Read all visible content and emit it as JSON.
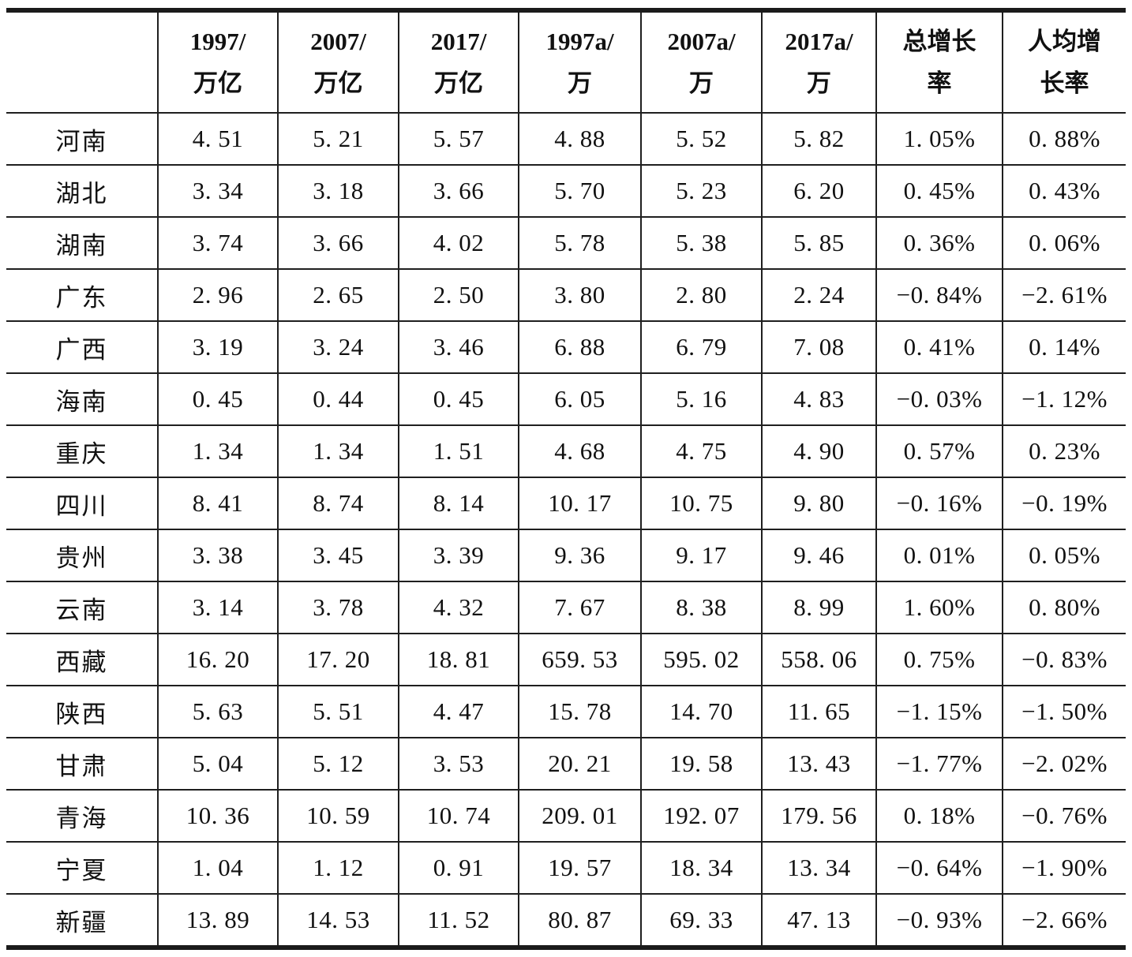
{
  "table": {
    "columns": [
      {
        "line1": "",
        "line2": ""
      },
      {
        "line1": "1997/",
        "line2": "万亿"
      },
      {
        "line1": "2007/",
        "line2": "万亿"
      },
      {
        "line1": "2017/",
        "line2": "万亿"
      },
      {
        "line1": "1997a/",
        "line2": "万"
      },
      {
        "line1": "2007a/",
        "line2": "万"
      },
      {
        "line1": "2017a/",
        "line2": "万"
      },
      {
        "line1": "总增长",
        "line2": "率"
      },
      {
        "line1": "人均增",
        "line2": "长率"
      }
    ],
    "rows": [
      {
        "province": "河南",
        "values": [
          "4. 51",
          "5. 21",
          "5. 57",
          "4. 88",
          "5. 52",
          "5. 82",
          "1. 05%",
          "0. 88%"
        ]
      },
      {
        "province": "湖北",
        "values": [
          "3. 34",
          "3. 18",
          "3. 66",
          "5. 70",
          "5. 23",
          "6. 20",
          "0. 45%",
          "0. 43%"
        ]
      },
      {
        "province": "湖南",
        "values": [
          "3. 74",
          "3. 66",
          "4. 02",
          "5. 78",
          "5. 38",
          "5. 85",
          "0. 36%",
          "0. 06%"
        ]
      },
      {
        "province": "广东",
        "values": [
          "2. 96",
          "2. 65",
          "2. 50",
          "3. 80",
          "2. 80",
          "2. 24",
          "−0. 84%",
          "−2. 61%"
        ]
      },
      {
        "province": "广西",
        "values": [
          "3. 19",
          "3. 24",
          "3. 46",
          "6. 88",
          "6. 79",
          "7. 08",
          "0. 41%",
          "0. 14%"
        ]
      },
      {
        "province": "海南",
        "values": [
          "0. 45",
          "0. 44",
          "0. 45",
          "6. 05",
          "5. 16",
          "4. 83",
          "−0. 03%",
          "−1. 12%"
        ]
      },
      {
        "province": "重庆",
        "values": [
          "1. 34",
          "1. 34",
          "1. 51",
          "4. 68",
          "4. 75",
          "4. 90",
          "0. 57%",
          "0. 23%"
        ]
      },
      {
        "province": "四川",
        "values": [
          "8. 41",
          "8. 74",
          "8. 14",
          "10. 17",
          "10. 75",
          "9. 80",
          "−0. 16%",
          "−0. 19%"
        ]
      },
      {
        "province": "贵州",
        "values": [
          "3. 38",
          "3. 45",
          "3. 39",
          "9. 36",
          "9. 17",
          "9. 46",
          "0. 01%",
          "0. 05%"
        ]
      },
      {
        "province": "云南",
        "values": [
          "3. 14",
          "3. 78",
          "4. 32",
          "7. 67",
          "8. 38",
          "8. 99",
          "1. 60%",
          "0. 80%"
        ]
      },
      {
        "province": "西藏",
        "values": [
          "16. 20",
          "17. 20",
          "18. 81",
          "659. 53",
          "595. 02",
          "558. 06",
          "0. 75%",
          "−0. 83%"
        ]
      },
      {
        "province": "陕西",
        "values": [
          "5. 63",
          "5. 51",
          "4. 47",
          "15. 78",
          "14. 70",
          "11. 65",
          "−1. 15%",
          "−1. 50%"
        ]
      },
      {
        "province": "甘肃",
        "values": [
          "5. 04",
          "5. 12",
          "3. 53",
          "20. 21",
          "19. 58",
          "13. 43",
          "−1. 77%",
          "−2. 02%"
        ]
      },
      {
        "province": "青海",
        "values": [
          "10. 36",
          "10. 59",
          "10. 74",
          "209. 01",
          "192. 07",
          "179. 56",
          "0. 18%",
          "−0. 76%"
        ]
      },
      {
        "province": "宁夏",
        "values": [
          "1. 04",
          "1. 12",
          "0. 91",
          "19. 57",
          "18. 34",
          "13. 34",
          "−0. 64%",
          "−1. 90%"
        ]
      },
      {
        "province": "新疆",
        "values": [
          "13. 89",
          "14. 53",
          "11. 52",
          "80. 87",
          "69. 33",
          "47. 13",
          "−0. 93%",
          "−2. 66%"
        ]
      }
    ]
  }
}
